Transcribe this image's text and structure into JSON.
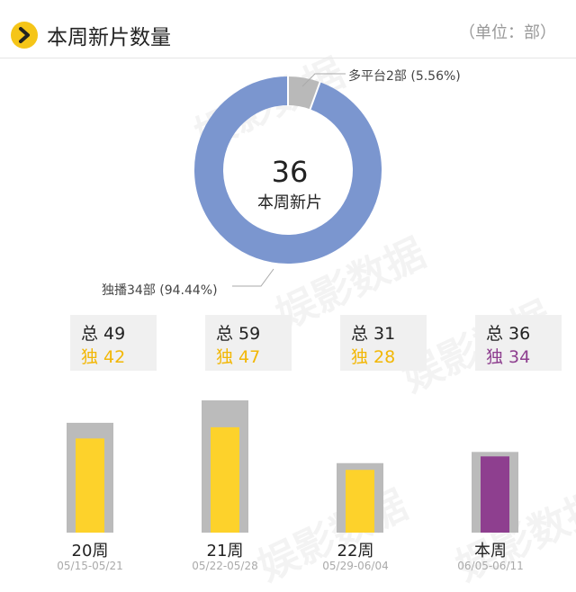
{
  "header": {
    "title": "本周新片数量",
    "unit": "（单位：部）"
  },
  "donut": {
    "center_value": "36",
    "center_label": "本周新片",
    "callout_multi": "多平台2部 (5.56%)",
    "callout_exclusive": "独播34部 (94.44%)"
  },
  "colors": {
    "exclusive": "#7b96cf",
    "multi": "#b9b9b9",
    "bar_yellow": "#fdd22b",
    "bar_current": "#8e3f8f",
    "bar_frame": "#bbbbbb"
  },
  "weeks": [
    {
      "label": "20周",
      "range": "05/15-05/21",
      "total_text": "总 49",
      "excl_text": "独 42"
    },
    {
      "label": "21周",
      "range": "05/22-05/28",
      "total_text": "总 59",
      "excl_text": "独 47"
    },
    {
      "label": "22周",
      "range": "05/29-06/04",
      "total_text": "总 31",
      "excl_text": "独 28"
    },
    {
      "label": "本周",
      "range": "06/05-06/11",
      "total_text": "总 36",
      "excl_text": "独 34"
    }
  ],
  "watermark": "娱影数据",
  "chart_data": [
    {
      "type": "pie",
      "labels": [
        "独播",
        "多平台"
      ],
      "values": [
        34,
        2
      ],
      "percentages": [
        94.44,
        5.56
      ],
      "center_value": 36
    },
    {
      "type": "bar",
      "categories": [
        "20周",
        "21周",
        "22周",
        "本周"
      ],
      "series": [
        {
          "name": "总",
          "values": [
            49,
            59,
            31,
            36
          ]
        },
        {
          "name": "独",
          "values": [
            42,
            47,
            28,
            34
          ]
        }
      ]
    }
  ]
}
